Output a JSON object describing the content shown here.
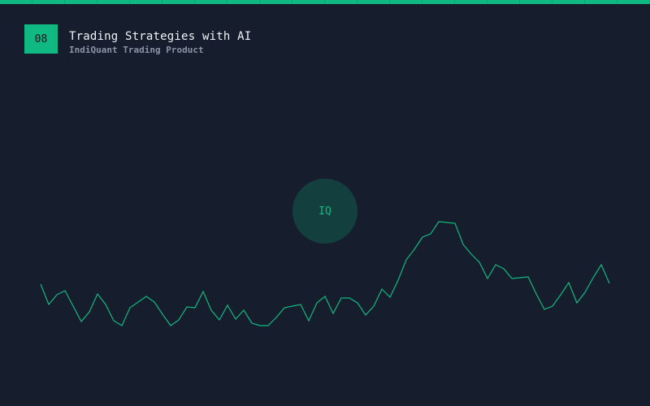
{
  "colors": {
    "accent": "#10b981",
    "background": "#161d2d",
    "logo_bg": "#143f3f",
    "title": "#f1f4f8",
    "subtitle": "#8b93a5"
  },
  "slide": {
    "number": "08",
    "title": "Trading Strategies with AI",
    "subtitle": "IndiQuant Trading Product"
  },
  "logo": {
    "text": "IQ"
  },
  "chart_data": {
    "type": "line",
    "title": "",
    "xlabel": "",
    "ylabel": "",
    "grid": false,
    "series": [
      {
        "values": [
          150,
          125,
          137,
          142,
          123,
          104,
          116,
          138,
          125,
          105,
          99,
          121,
          128,
          135,
          128,
          113,
          99,
          106,
          122,
          121,
          141,
          118,
          106,
          124,
          107,
          118,
          102,
          99,
          99,
          109,
          121,
          123,
          125,
          105,
          127,
          135,
          114,
          133,
          133,
          127,
          112,
          123,
          144,
          134,
          155,
          180,
          193,
          208,
          212,
          227,
          226,
          225,
          199,
          187,
          177,
          157,
          174,
          169,
          157,
          158,
          159,
          138,
          119,
          123,
          137,
          152,
          127,
          140,
          158,
          174,
          151
        ]
      }
    ]
  }
}
